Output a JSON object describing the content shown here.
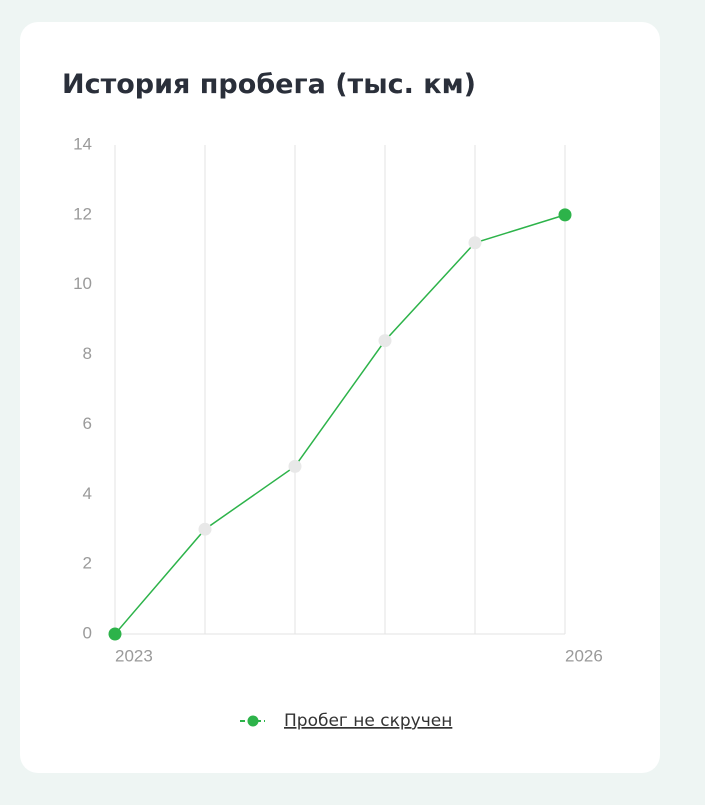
{
  "chart_data": {
    "type": "line",
    "title": "История пробега (тыс. км)",
    "categories": [
      "2023",
      null,
      null,
      null,
      null,
      "2026"
    ],
    "series": [
      {
        "name": "Пробег не скручен",
        "color": "#2db34a",
        "marker_colors": [
          "#2db34a",
          "#e8e8e8",
          "#e8e8e8",
          "#e8e8e8",
          "#e8e8e8",
          "#2db34a"
        ],
        "values": [
          0,
          3.0,
          4.8,
          8.4,
          11.2,
          12
        ]
      }
    ],
    "ylim": [
      0,
      14
    ],
    "yticks": [
      0,
      2,
      4,
      6,
      8,
      10,
      12,
      14
    ],
    "grid": "vertical",
    "legend": "bottom"
  }
}
